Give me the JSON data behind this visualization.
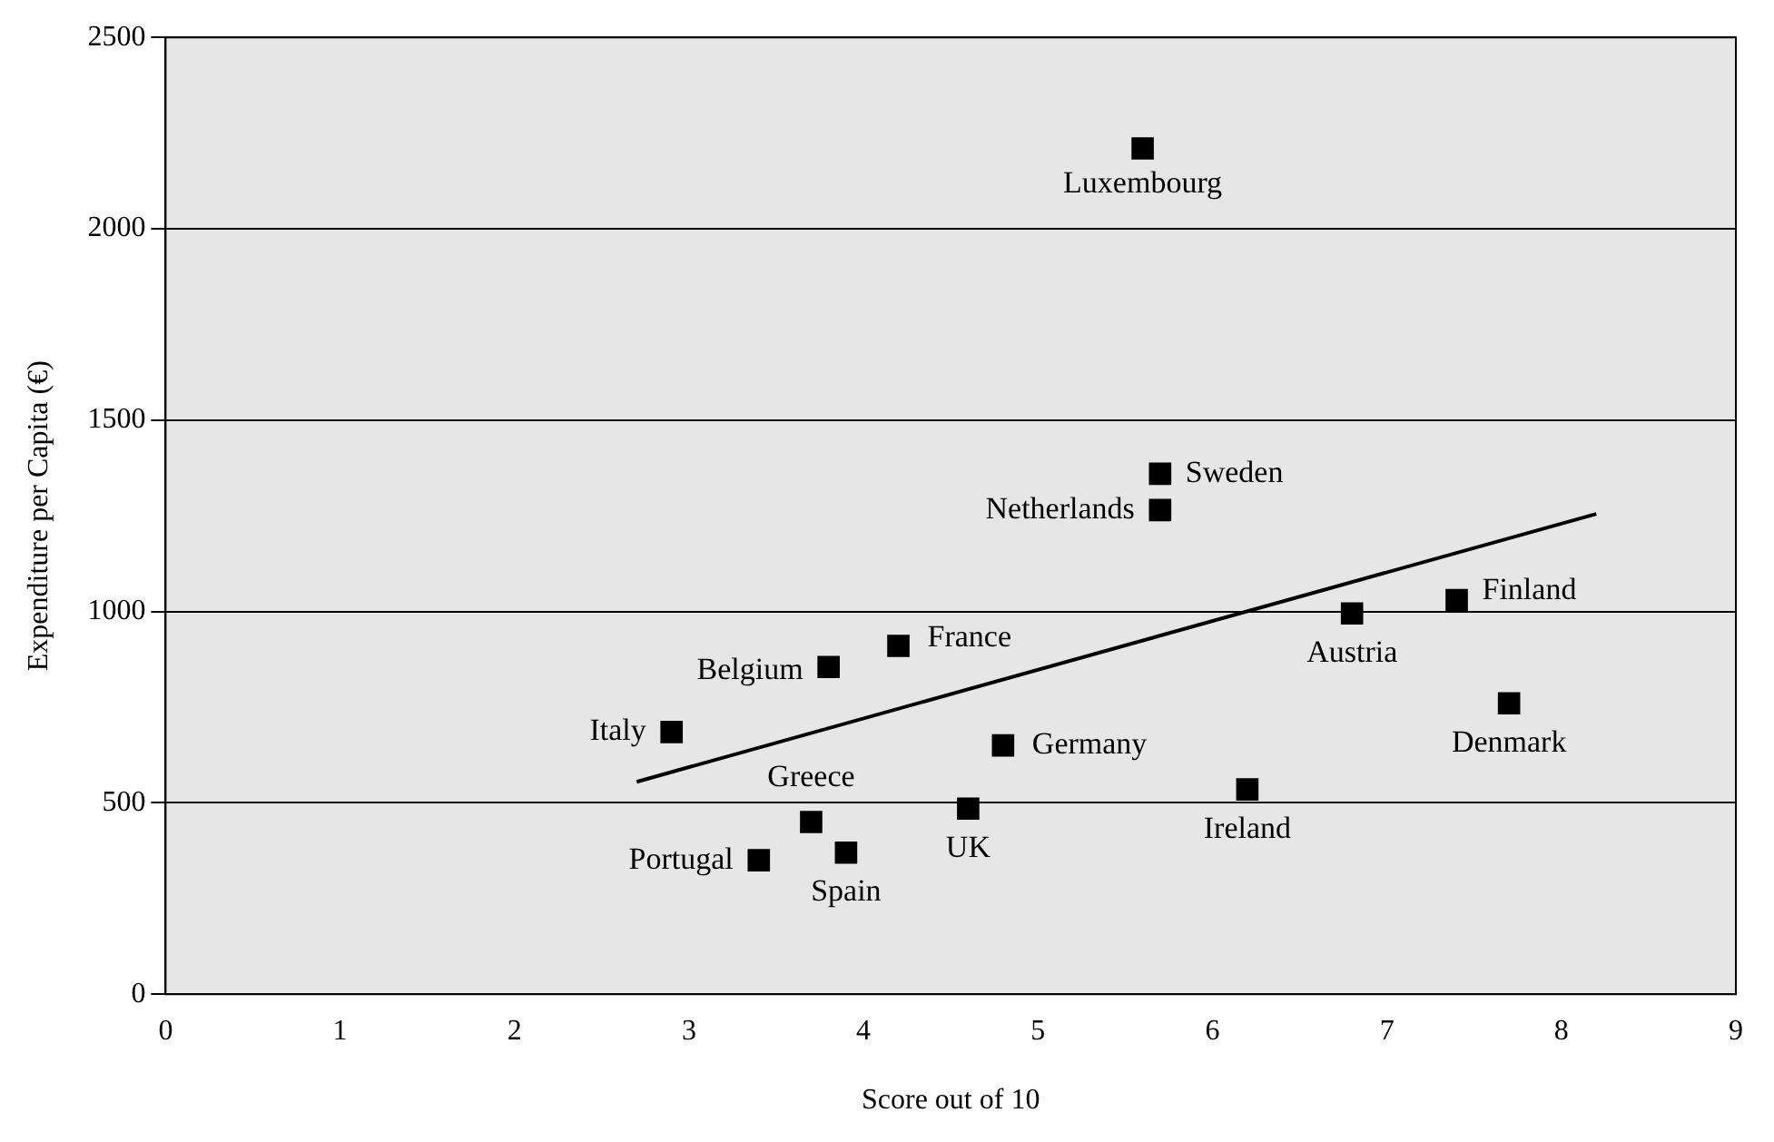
{
  "chart_data": {
    "type": "scatter",
    "xlabel": "Score out of 10",
    "ylabel": "Expenditure per Capita (€)",
    "xlim": [
      0,
      9
    ],
    "xticks": [
      0,
      1,
      2,
      3,
      4,
      5,
      6,
      7,
      8,
      9
    ],
    "ylim": [
      0,
      2500
    ],
    "yticks": [
      0,
      500,
      1000,
      1500,
      2000,
      2500
    ],
    "grid": "y",
    "legend": false,
    "series": [
      {
        "marker": "square",
        "color": "#000000",
        "x": [
          5.6,
          5.7,
          5.7,
          7.4,
          6.8,
          7.7,
          4.2,
          3.8,
          2.9,
          4.8,
          4.6,
          6.2,
          3.7,
          3.9,
          3.4
        ],
        "values": [
          2210,
          1360,
          1265,
          1030,
          995,
          760,
          910,
          855,
          685,
          650,
          485,
          535,
          450,
          370,
          350
        ]
      },
      {
        "type": "line",
        "marker": "none",
        "color": "#000000",
        "x": [
          2.7,
          8.2
        ],
        "values": [
          555,
          1255
        ]
      }
    ],
    "annotations": [
      {
        "text": "Luxembourg",
        "x": 5.6,
        "y": 2210
      },
      {
        "text": "Sweden",
        "x": 5.7,
        "y": 1360
      },
      {
        "text": "Netherlands",
        "x": 5.7,
        "y": 1265
      },
      {
        "text": "Finland",
        "x": 7.4,
        "y": 1030
      },
      {
        "text": "Austria",
        "x": 6.8,
        "y": 995
      },
      {
        "text": "Denmark",
        "x": 7.7,
        "y": 760
      },
      {
        "text": "France",
        "x": 4.2,
        "y": 910
      },
      {
        "text": "Belgium",
        "x": 3.8,
        "y": 855
      },
      {
        "text": "Italy",
        "x": 2.9,
        "y": 685
      },
      {
        "text": "Germany",
        "x": 4.8,
        "y": 650
      },
      {
        "text": "UK",
        "x": 4.6,
        "y": 485
      },
      {
        "text": "Ireland",
        "x": 6.2,
        "y": 535
      },
      {
        "text": "Greece",
        "x": 3.7,
        "y": 450
      },
      {
        "text": "Spain",
        "x": 3.9,
        "y": 370
      },
      {
        "text": "Portugal",
        "x": 3.4,
        "y": 350
      }
    ]
  }
}
